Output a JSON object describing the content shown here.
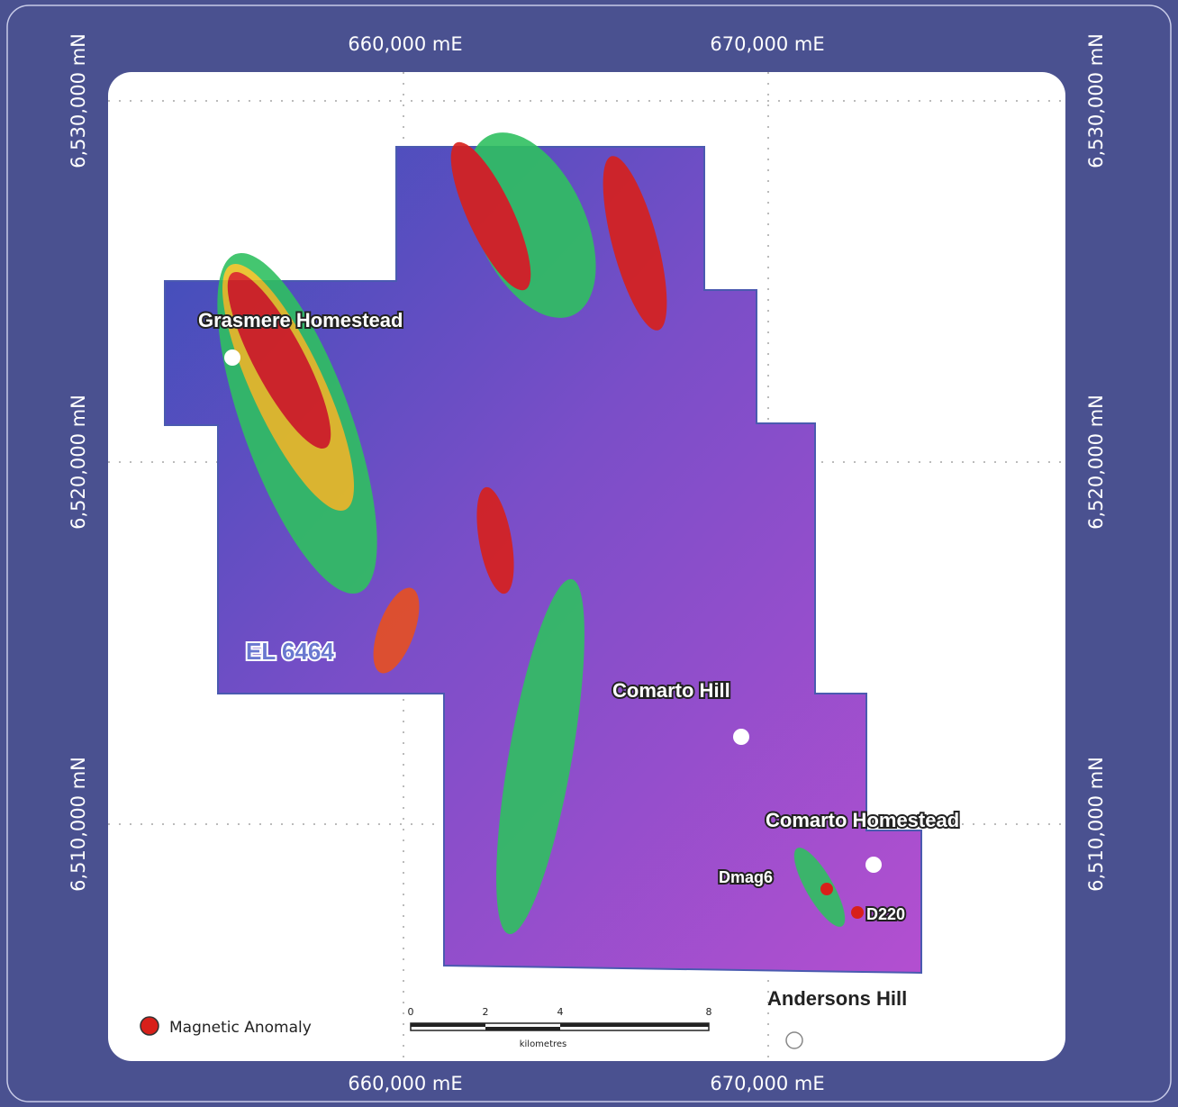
{
  "grid": {
    "eastings": [
      "660,000 mE",
      "670,000 mE"
    ],
    "northings": [
      "6,530,000 mN",
      "6,520,000 mN",
      "6,510,000 mN"
    ]
  },
  "places": {
    "grasmere": "Grasmere Homestead",
    "tenement": "EL 6464",
    "comarto_hill": "Comarto Hill",
    "comarto_homestead": "Comarto Homestead",
    "dmag6": "Dmag6",
    "d220": "D220",
    "andersons": "Andersons Hill"
  },
  "legend": {
    "anomaly": "Magnetic Anomaly"
  },
  "scale_bar": {
    "ticks": [
      "0",
      "2",
      "4",
      "8"
    ],
    "unit": "kilometres"
  }
}
